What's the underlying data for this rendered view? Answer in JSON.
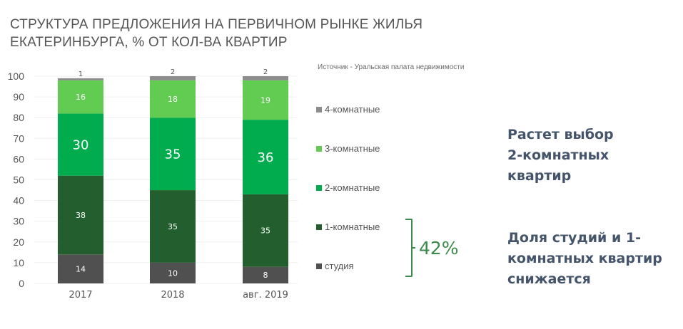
{
  "chart_data": {
    "type": "bar",
    "stacked": true,
    "title": "СТРУКТУРА ПРЕДЛОЖЕНИЯ НА ПЕРВИЧНОМ РЫНКЕ ЖИЛЬЯ ЕКАТЕРИНБУРГА, % ОТ КОЛ-ВА КВАРТИР",
    "title_lines": [
      "СТРУКТУРА ПРЕДЛОЖЕНИЯ НА ПЕРВИЧНОМ РЫНКЕ ЖИЛЬЯ",
      "ЕКАТЕРИНБУРГА, % ОТ КОЛ-ВА КВАРТИР"
    ],
    "source": "Источник - Уральская  палата недвижимости",
    "xlabel": "",
    "ylabel": "",
    "ylim": [
      0,
      100
    ],
    "yticks": [
      "0",
      "10",
      "20",
      "30",
      "40",
      "50",
      "60",
      "70",
      "80",
      "90",
      "100"
    ],
    "grid": true,
    "legend_position": "right",
    "categories": [
      "2017",
      "2018",
      "авг. 2019"
    ],
    "series": [
      {
        "name": "студия",
        "color": "#505050",
        "values": [
          14,
          10,
          8
        ],
        "labels": [
          "14",
          "10",
          "8"
        ]
      },
      {
        "name": "1-комнатные",
        "color": "#235f2e",
        "values": [
          38,
          35,
          35
        ],
        "labels": [
          "38",
          "35",
          "35"
        ]
      },
      {
        "name": "2-комнатные",
        "color": "#00ac4e",
        "values": [
          30,
          35,
          36
        ],
        "labels": [
          "30",
          "35",
          "36"
        ]
      },
      {
        "name": "3-комнатные",
        "color": "#62cc52",
        "values": [
          16,
          18,
          19
        ],
        "labels": [
          "16",
          "18",
          "19"
        ]
      },
      {
        "name": "4-комнатные",
        "color": "#8c8c8c",
        "values": [
          1,
          2,
          2
        ],
        "labels": [
          "1",
          "2",
          "2"
        ]
      }
    ],
    "legend_order": [
      "4-комнатные",
      "3-комнатные",
      "2-комнатные",
      "1-комнатные",
      "студия"
    ]
  },
  "annotation": {
    "bracket_value": "42%",
    "color": "#3a8a4a"
  },
  "notes": {
    "first_lines": [
      "Растет выбор",
      "2-комнатных",
      "квартир"
    ],
    "second_lines": [
      "Доля студий и 1-",
      "комнатных квартир",
      "снижается"
    ],
    "color": "#44546a"
  }
}
